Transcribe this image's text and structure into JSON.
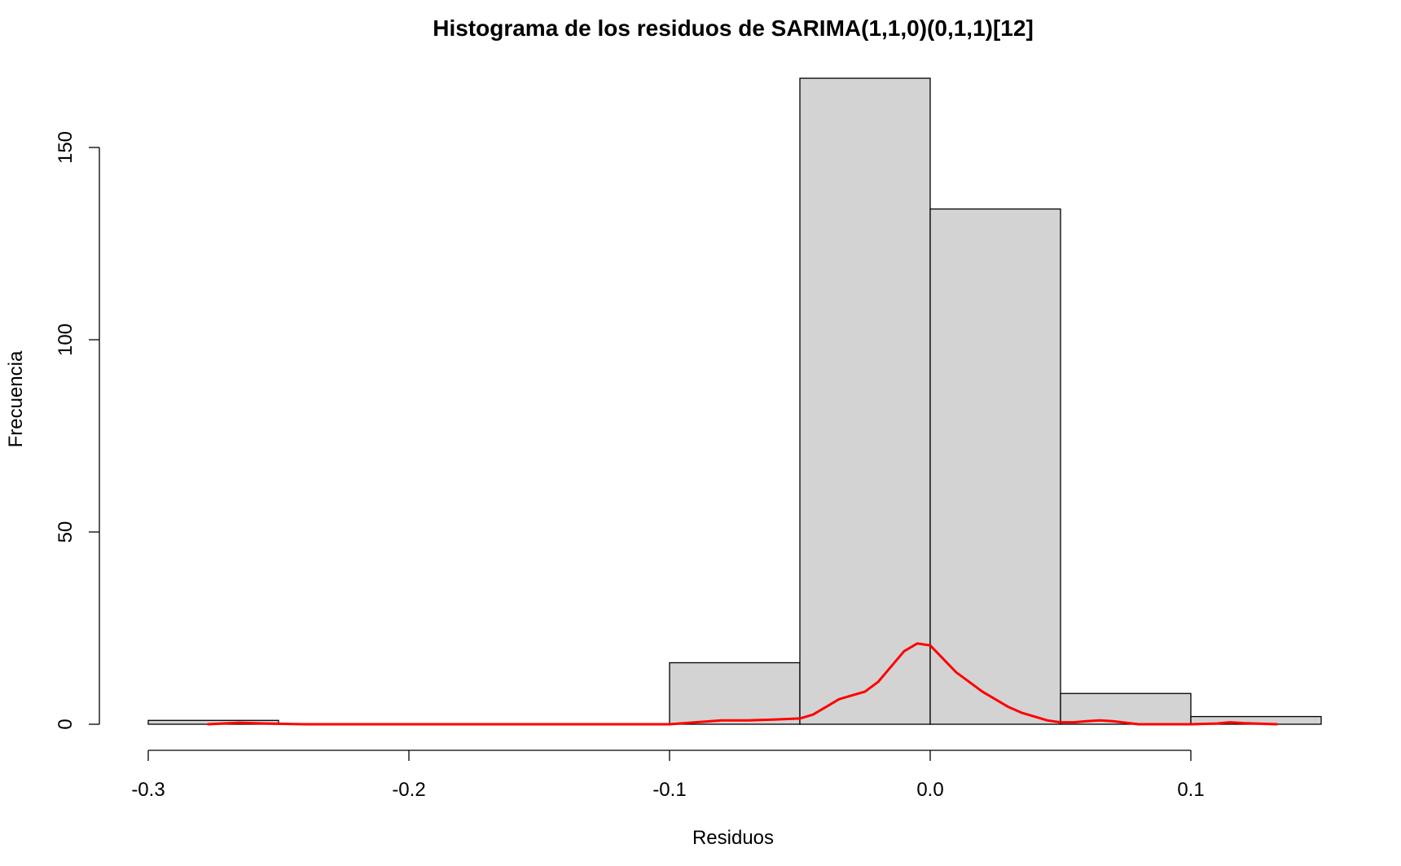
{
  "chart_data": {
    "type": "histogram",
    "title": "Histograma de los residuos de SARIMA(1,1,0)(0,1,1)[12]",
    "xlabel": "Residuos",
    "ylabel": "Frecuencia",
    "xlim": [
      -0.3,
      0.15
    ],
    "ylim": [
      0,
      170
    ],
    "x_ticks": [
      -0.3,
      -0.2,
      -0.1,
      0.0,
      0.1
    ],
    "x_tick_labels": [
      "-0.3",
      "-0.2",
      "-0.1",
      "0.0",
      "0.1"
    ],
    "y_ticks": [
      0,
      50,
      100,
      150
    ],
    "y_tick_labels": [
      "0",
      "50",
      "100",
      "150"
    ],
    "bins": [
      {
        "start": -0.3,
        "end": -0.25,
        "count": 1
      },
      {
        "start": -0.25,
        "end": -0.2,
        "count": 0
      },
      {
        "start": -0.2,
        "end": -0.15,
        "count": 0
      },
      {
        "start": -0.15,
        "end": -0.1,
        "count": 0
      },
      {
        "start": -0.1,
        "end": -0.05,
        "count": 16
      },
      {
        "start": -0.05,
        "end": 0.0,
        "count": 168
      },
      {
        "start": 0.0,
        "end": 0.05,
        "count": 134
      },
      {
        "start": 0.05,
        "end": 0.1,
        "count": 8
      },
      {
        "start": 0.1,
        "end": 0.15,
        "count": 2
      }
    ],
    "bar_color": "#d3d3d3",
    "density_color": "#ff0000",
    "density_curve": {
      "x": [
        -0.277,
        -0.265,
        -0.255,
        -0.24,
        -0.2,
        -0.15,
        -0.1,
        -0.09,
        -0.08,
        -0.07,
        -0.06,
        -0.05,
        -0.045,
        -0.04,
        -0.035,
        -0.03,
        -0.025,
        -0.02,
        -0.015,
        -0.01,
        -0.005,
        0.0,
        0.005,
        0.01,
        0.015,
        0.02,
        0.025,
        0.03,
        0.035,
        0.04,
        0.045,
        0.05,
        0.055,
        0.06,
        0.065,
        0.07,
        0.08,
        0.09,
        0.1,
        0.11,
        0.115,
        0.12,
        0.133
      ],
      "y": [
        0,
        0.4,
        0.2,
        0,
        0,
        0,
        0,
        0.5,
        1,
        1,
        1.2,
        1.5,
        2.5,
        4.5,
        6.5,
        7.5,
        8.5,
        11,
        15,
        19,
        21,
        20.5,
        17,
        13.5,
        11,
        8.5,
        6.5,
        4.5,
        3,
        2,
        1,
        0.5,
        0.5,
        0.8,
        1,
        0.8,
        0,
        0,
        0,
        0.2,
        0.5,
        0.3,
        0
      ]
    }
  }
}
